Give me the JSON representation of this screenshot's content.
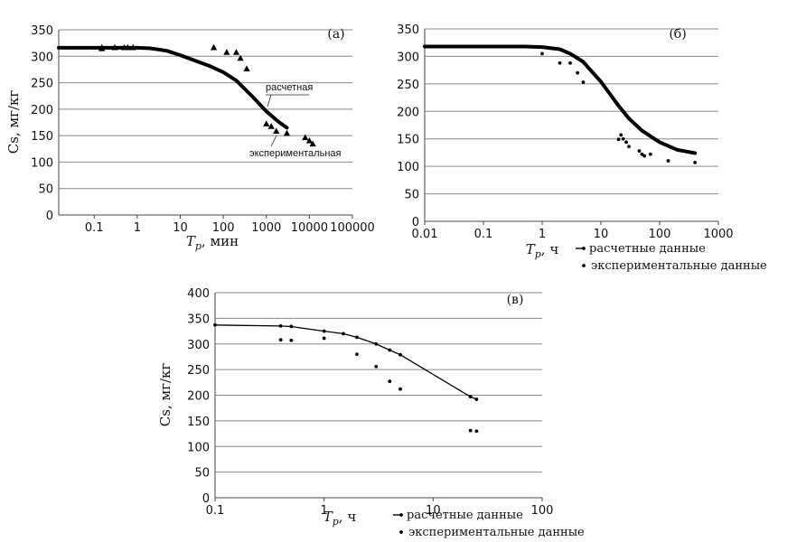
{
  "chart_data": [
    {
      "type": "line",
      "panel_label": "(а)",
      "xlabel": "T",
      "xlabel_sub": "p",
      "xlabel_unit": ", мин",
      "ylabel": "Cs, мг/кг",
      "xscale": "log",
      "xlim": [
        0.015,
        100000
      ],
      "ylim": [
        0,
        350
      ],
      "yticks": [
        0,
        50,
        100,
        150,
        200,
        250,
        300,
        350
      ],
      "xticks": [
        0.1,
        1,
        10,
        100,
        1000,
        10000,
        100000
      ],
      "xtick_labels": [
        "0.1",
        "1",
        "10",
        "100",
        "1000",
        "10000",
        "100000"
      ],
      "grid": "horizontal",
      "annotations": [
        "расчетная",
        "экспериментальная"
      ],
      "series": [
        {
          "role": "calculated",
          "marker": "none",
          "x": [
            0.015,
            0.1,
            0.5,
            1,
            2,
            3,
            5,
            10,
            20,
            50,
            100,
            200,
            500,
            1000,
            2000,
            3000
          ],
          "y": [
            316,
            316,
            316,
            316,
            315,
            313,
            310,
            302,
            293,
            281,
            270,
            254,
            222,
            196,
            175,
            165
          ]
        },
        {
          "role": "experimental",
          "marker": "triangle",
          "x": [
            0.15,
            0.15,
            0.3,
            0.5,
            0.6,
            0.8,
            60,
            120,
            200,
            250,
            350,
            1000,
            1300,
            1700,
            3000,
            8000,
            10000,
            12000
          ],
          "y": [
            316,
            314,
            316,
            316,
            316,
            316,
            316,
            307,
            307,
            296,
            276,
            172,
            167,
            158,
            154,
            146,
            140,
            134
          ]
        }
      ]
    },
    {
      "type": "line",
      "panel_label": "(б)",
      "xlabel": "T",
      "xlabel_sub": "p",
      "xlabel_unit": ", ч",
      "ylabel": "",
      "xscale": "log",
      "xlim": [
        0.01,
        1000
      ],
      "ylim": [
        0,
        350
      ],
      "yticks": [
        0,
        50,
        100,
        150,
        200,
        250,
        300,
        350
      ],
      "xticks": [
        0.01,
        0.1,
        1,
        10,
        100,
        1000
      ],
      "xtick_labels": [
        "0.01",
        "0.1",
        "1",
        "10",
        "100",
        "1000"
      ],
      "grid": "horizontal",
      "legend": [
        "расчетные данные",
        "экспериментальные данные"
      ],
      "series": [
        {
          "role": "calculated",
          "marker": "none",
          "x": [
            0.01,
            0.1,
            0.5,
            1,
            2,
            3,
            5,
            10,
            20,
            30,
            50,
            100,
            200,
            400
          ],
          "y": [
            318,
            318,
            318,
            317,
            313,
            305,
            290,
            254,
            210,
            187,
            165,
            144,
            130,
            124
          ]
        },
        {
          "role": "experimental",
          "marker": "dot",
          "x": [
            0.01,
            0.13,
            0.2,
            0.25,
            0.3,
            0.4,
            0.5,
            1,
            2,
            3,
            4,
            5,
            20,
            22,
            24,
            27,
            30,
            45,
            50,
            55,
            70,
            140,
            400
          ],
          "y": [
            318,
            318,
            318,
            318,
            318,
            318,
            318,
            305,
            288,
            288,
            270,
            253,
            149,
            157,
            150,
            144,
            136,
            128,
            122,
            119,
            122,
            110,
            107
          ]
        }
      ]
    },
    {
      "type": "line",
      "panel_label": "(в)",
      "xlabel": "T",
      "xlabel_sub": "p",
      "xlabel_unit": ", ч",
      "ylabel": "Cs, мг/кг",
      "xscale": "log",
      "xlim": [
        0.1,
        100
      ],
      "ylim": [
        0,
        400
      ],
      "yticks": [
        0,
        50,
        100,
        150,
        200,
        250,
        300,
        350,
        400
      ],
      "xticks": [
        0.1,
        1,
        10,
        100
      ],
      "xtick_labels": [
        "0.1",
        "1",
        "10",
        "100"
      ],
      "grid": "horizontal",
      "legend": [
        "расчетные данные",
        "экспериментальные данные"
      ],
      "series": [
        {
          "role": "calculated",
          "marker": "dot",
          "x": [
            0.1,
            0.4,
            0.5,
            1,
            1.5,
            2,
            3,
            4,
            5,
            22,
            25
          ],
          "y": [
            337,
            335,
            334,
            325,
            320,
            313,
            300,
            288,
            279,
            197,
            192
          ]
        },
        {
          "role": "experimental",
          "marker": "dot",
          "x": [
            0.4,
            0.5,
            1,
            2,
            3,
            4,
            5,
            22,
            25
          ],
          "y": [
            308,
            307,
            311,
            280,
            256,
            227,
            212,
            131,
            130
          ]
        }
      ]
    }
  ]
}
